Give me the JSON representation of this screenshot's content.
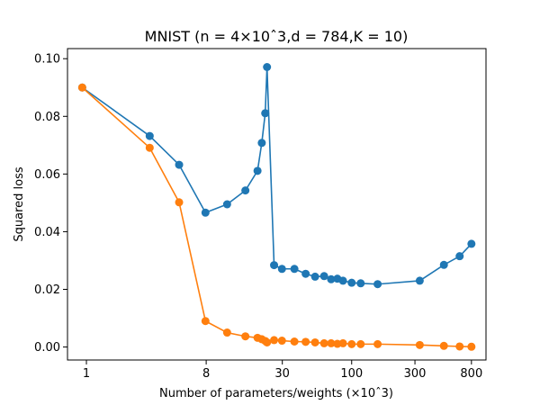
{
  "chart_data": {
    "type": "line",
    "title": "MNIST (n = 4×10ˆ3,d = 784,K = 10)",
    "xlabel": "Number of parameters/weights (×10ˆ3)",
    "ylabel": "Squared loss",
    "xscale": "log",
    "xlim": [
      0.72,
      1030
    ],
    "ylim": [
      -0.0045,
      0.1035
    ],
    "x_ticks": [
      {
        "value": 1,
        "label": "1"
      },
      {
        "value": 8,
        "label": "8"
      },
      {
        "value": 30,
        "label": "30"
      },
      {
        "value": 100,
        "label": "100"
      },
      {
        "value": 300,
        "label": "300"
      },
      {
        "value": 800,
        "label": "800"
      }
    ],
    "y_ticks": [
      {
        "value": 0.0,
        "label": "0.00"
      },
      {
        "value": 0.02,
        "label": "0.02"
      },
      {
        "value": 0.04,
        "label": "0.04"
      },
      {
        "value": 0.06,
        "label": "0.06"
      },
      {
        "value": 0.08,
        "label": "0.08"
      },
      {
        "value": 0.1,
        "label": "0.10"
      }
    ],
    "grid": false,
    "legend": "none",
    "series": [
      {
        "color": "#1f77b4",
        "marker": "circle",
        "points": [
          [
            0.93,
            0.09
          ],
          [
            3.0,
            0.0732
          ],
          [
            5.0,
            0.0632
          ],
          [
            7.9,
            0.0466
          ],
          [
            11.5,
            0.0495
          ],
          [
            15.8,
            0.0543
          ],
          [
            19.5,
            0.0611
          ],
          [
            21.0,
            0.0708
          ],
          [
            22.3,
            0.0811
          ],
          [
            23.0,
            0.0971
          ],
          [
            26.0,
            0.0284
          ],
          [
            29.8,
            0.0271
          ],
          [
            37.0,
            0.0271
          ],
          [
            45.0,
            0.0254
          ],
          [
            53.0,
            0.0244
          ],
          [
            62.0,
            0.0246
          ],
          [
            70.0,
            0.0235
          ],
          [
            78.0,
            0.0237
          ],
          [
            86.0,
            0.023
          ],
          [
            100.0,
            0.0223
          ],
          [
            117.0,
            0.0221
          ],
          [
            157.0,
            0.0218
          ],
          [
            326.0,
            0.023
          ],
          [
            496.0,
            0.0285
          ],
          [
            652.0,
            0.0315
          ],
          [
            800.0,
            0.0358
          ]
        ]
      },
      {
        "color": "#ff7f0e",
        "marker": "circle",
        "points": [
          [
            0.93,
            0.09
          ],
          [
            3.0,
            0.0691
          ],
          [
            5.0,
            0.0502
          ],
          [
            7.9,
            0.009
          ],
          [
            11.5,
            0.005
          ],
          [
            15.8,
            0.0037
          ],
          [
            19.5,
            0.0032
          ],
          [
            21.0,
            0.0027
          ],
          [
            22.3,
            0.0021
          ],
          [
            23.0,
            0.0016
          ],
          [
            26.0,
            0.0024
          ],
          [
            29.8,
            0.0022
          ],
          [
            37.0,
            0.0019
          ],
          [
            45.0,
            0.0018
          ],
          [
            53.0,
            0.0016
          ],
          [
            62.0,
            0.0013
          ],
          [
            70.0,
            0.0013
          ],
          [
            78.0,
            0.0011
          ],
          [
            86.0,
            0.0013
          ],
          [
            100.0,
            0.001
          ],
          [
            117.0,
            0.001
          ],
          [
            157.0,
            0.001
          ],
          [
            326.0,
            0.0007
          ],
          [
            496.0,
            0.0004
          ],
          [
            652.0,
            0.0002
          ],
          [
            800.0,
            0.0001
          ]
        ]
      }
    ]
  }
}
